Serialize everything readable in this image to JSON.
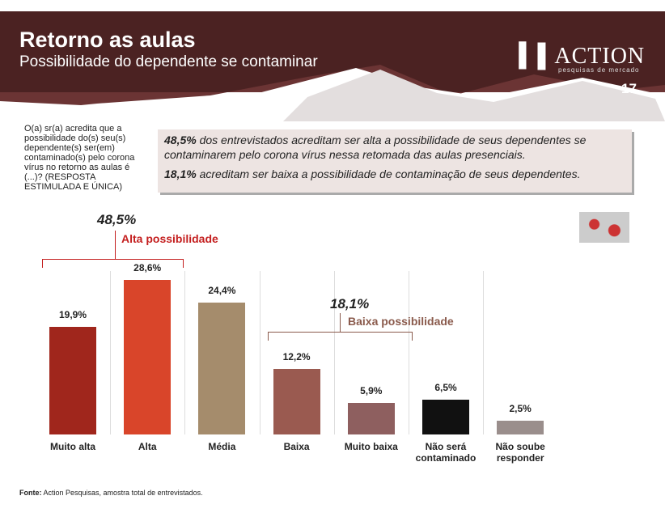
{
  "slide": {
    "logo": "ACTION",
    "logo_tagline": "pesquisas de mercado",
    "page_number": "17",
    "question": "O(a) sr(a) acredita que a possibilidade do(s) seu(s) dependente(s) ser(em) contaminado(s) pelo corona vírus no retorno as aulas é (...)? (RESPOSTA ESTIMULADA E ÚNICA)",
    "callout": [
      {
        "bold": "48,5%",
        "text": " dos entrevistados acreditam ser alta a possibilidade de seus dependentes se contaminarem pelo corona vírus nessa retomada das aulas presenciais."
      },
      {
        "bold": "18,1%",
        "text": " acreditam ser baixa a possibilidade de contaminação de seus dependentes."
      }
    ],
    "source_label": "Fonte:",
    "source": "Action Pesquisas, amostra total de entrevistados."
  },
  "chart_data": {
    "type": "bar",
    "title": "Retorno as aulas",
    "subtitle": "Possibilidade do dependente se contaminar",
    "categories": [
      "Muito alta",
      "Alta",
      "Média",
      "Baixa",
      "Muito baixa",
      "Não será contaminado",
      "Não soube responder"
    ],
    "values": [
      19.9,
      28.6,
      24.4,
      12.2,
      5.9,
      6.5,
      2.5
    ],
    "value_labels": [
      "19,9%",
      "28,6%",
      "24,4%",
      "12,2%",
      "5,9%",
      "6,5%",
      "2,5%"
    ],
    "colors": [
      "#a0261c",
      "#d9452a",
      "#a58c6c",
      "#9a5a50",
      "#8e5f5f",
      "#111111",
      "#9a8e8c"
    ],
    "groups": [
      {
        "total": {
          "value": 48.5,
          "label": "48,5%"
        },
        "name": "Alta possibilidade",
        "color": "#c41f1f"
      },
      {
        "total": {
          "value": 18.1,
          "label": "18,1%"
        },
        "name": "Baixa possibilidade",
        "color": "#8a5a4c"
      }
    ]
  }
}
